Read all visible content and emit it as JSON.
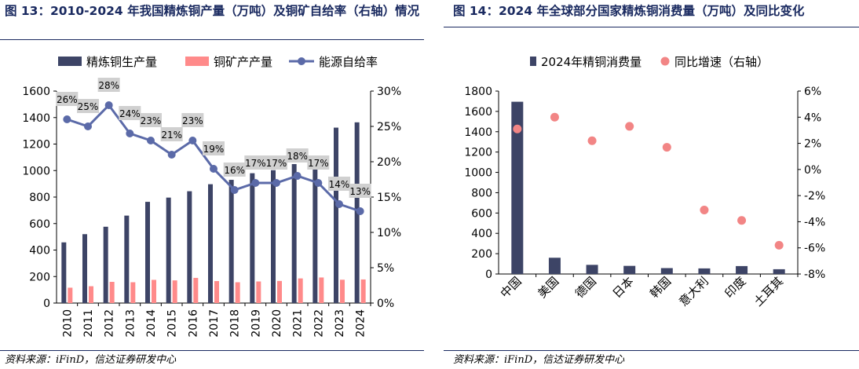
{
  "left_panel": {
    "title": "图 13：2010-2024 年我国精炼铜产量（万吨）及铜矿自给率（右轴）情况",
    "source": "资料来源：iFinD，信达证券研发中心"
  },
  "right_panel": {
    "title": "图 14：2024 年全球部分国家精炼铜消费量（万吨）及同比变化",
    "source": "资料来源：iFinD，信达证券研发中心"
  },
  "colors": {
    "title": "#1a2a60",
    "bar_dark": "#3d4466",
    "bar_pink": "#ff8a8a",
    "line": "#5b6aa8",
    "dot_pink": "#f28585",
    "label_box": "#d0d0d0"
  },
  "chart_data": [
    {
      "type": "bar",
      "categories": [
        "2010",
        "2011",
        "2012",
        "2013",
        "2014",
        "2015",
        "2016",
        "2017",
        "2018",
        "2019",
        "2020",
        "2021",
        "2022",
        "2023",
        "2024"
      ],
      "series": [
        {
          "name": "精炼铜生产量",
          "axis": "left",
          "type": "bar",
          "values": [
            458,
            520,
            576,
            660,
            764,
            796,
            844,
            897,
            930,
            980,
            1003,
            1049,
            1106,
            1324,
            1364
          ]
        },
        {
          "name": "铜矿产产量",
          "axis": "left",
          "type": "bar",
          "values": [
            116,
            127,
            160,
            157,
            175,
            171,
            190,
            166,
            157,
            163,
            167,
            186,
            193,
            176,
            178
          ]
        },
        {
          "name": "能源自给率",
          "axis": "right",
          "type": "line",
          "values": [
            26,
            25,
            28,
            24,
            23,
            21,
            23,
            19,
            16,
            17,
            17,
            18,
            17,
            14,
            13
          ],
          "data_labels": [
            "26%",
            "25%",
            "28%",
            "24%",
            "23%",
            "21%",
            "23%",
            "19%",
            "16%",
            "17%",
            "17%",
            "18%",
            "17%",
            "14%",
            "13%"
          ]
        }
      ],
      "ylim": [
        0,
        1600
      ],
      "yticks": [
        0,
        200,
        400,
        600,
        800,
        1000,
        1200,
        1400,
        1600
      ],
      "y2lim": [
        0,
        30
      ],
      "y2ticks": [
        "0%",
        "5%",
        "10%",
        "15%",
        "20%",
        "25%",
        "30%"
      ],
      "legend": "top"
    },
    {
      "type": "bar",
      "categories": [
        "中国",
        "美国",
        "德国",
        "日本",
        "韩国",
        "意大利",
        "印度",
        "土耳其"
      ],
      "series": [
        {
          "name": "2024年精铜消费量",
          "axis": "left",
          "type": "bar",
          "values": [
            1695,
            160,
            90,
            80,
            58,
            55,
            78,
            47
          ]
        },
        {
          "name": "同比增速（右轴）",
          "axis": "right",
          "type": "scatter",
          "values": [
            3.1,
            4.0,
            2.2,
            3.3,
            1.7,
            -3.1,
            -3.9,
            -5.8
          ]
        }
      ],
      "ylim": [
        0,
        1800
      ],
      "yticks": [
        0,
        200,
        400,
        600,
        800,
        1000,
        1200,
        1400,
        1600,
        1800
      ],
      "y2lim": [
        -8,
        6
      ],
      "y2ticks": [
        "-8%",
        "-6%",
        "-4%",
        "-2%",
        "0%",
        "2%",
        "4%",
        "6%"
      ],
      "legend": "top"
    }
  ]
}
